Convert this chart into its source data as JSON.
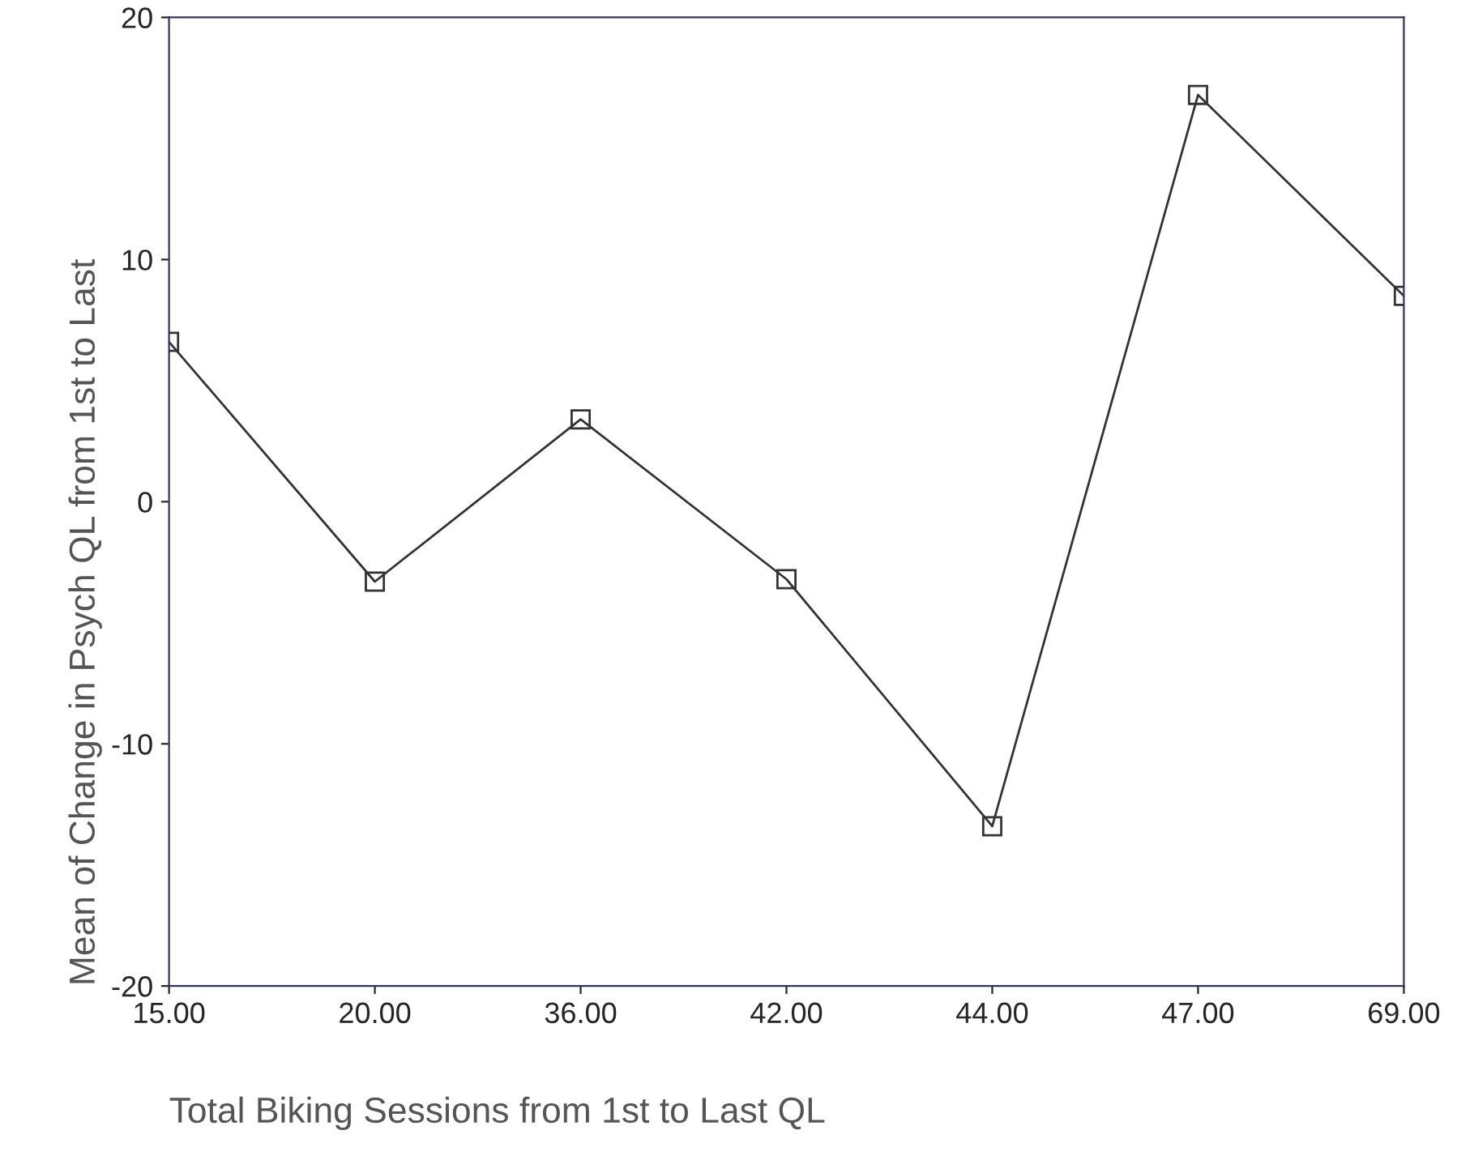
{
  "chart_data": {
    "type": "line",
    "xlabel": "Total Biking Sessions from 1st to Last QL",
    "ylabel": "Mean of Change in Psych QL from 1st to Last",
    "categories": [
      "15.00",
      "20.00",
      "36.00",
      "42.00",
      "44.00",
      "47.00",
      "69.00"
    ],
    "series": [
      {
        "color": "#333333",
        "values": [
          6.6,
          -3.3,
          3.4,
          -3.2,
          -13.4,
          16.8,
          8.5
        ]
      }
    ],
    "ylim": [
      -20,
      20
    ],
    "yticks": [
      -20,
      -10,
      0,
      10,
      20
    ],
    "grid": false,
    "legend": false,
    "marker": "square",
    "line_style": "solid"
  }
}
